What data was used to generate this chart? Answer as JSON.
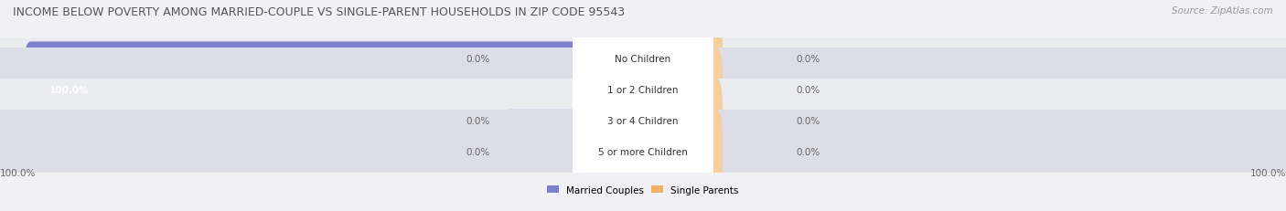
{
  "title": "INCOME BELOW POVERTY AMONG MARRIED-COUPLE VS SINGLE-PARENT HOUSEHOLDS IN ZIP CODE 95543",
  "source": "Source: ZipAtlas.com",
  "categories": [
    "No Children",
    "1 or 2 Children",
    "3 or 4 Children",
    "5 or more Children"
  ],
  "married_couples": [
    0.0,
    100.0,
    0.0,
    0.0
  ],
  "single_parents": [
    0.0,
    0.0,
    0.0,
    0.0
  ],
  "married_color": "#7b7fcc",
  "single_color": "#f0b06a",
  "married_color_light": "#b0b4e0",
  "single_color_light": "#f5cfa0",
  "row_bg_light": "#ebebf2",
  "row_bg_dark": "#dddde8",
  "bg_color": "#f0f0f5",
  "title_color": "#555555",
  "label_color": "#666666",
  "center_label_bg": "#ffffff",
  "max_value": 100.0,
  "legend_married": "Married Couples",
  "legend_single": "Single Parents",
  "title_fontsize": 9,
  "label_fontsize": 7.5,
  "source_fontsize": 7.5,
  "legend_fontsize": 7.5
}
